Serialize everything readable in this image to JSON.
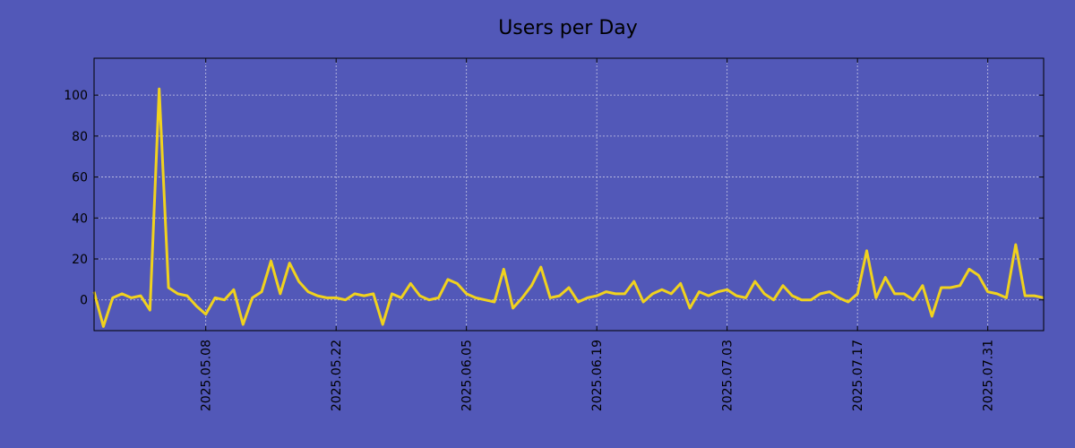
{
  "chart_data": {
    "type": "line",
    "title": "Users per Day",
    "xlabel": "",
    "ylabel": "",
    "ylim": [
      -15,
      118
    ],
    "yticks": [
      0,
      20,
      40,
      60,
      80,
      100
    ],
    "grid": true,
    "background": "#5258b8",
    "plot_background": "#5258b8",
    "line_color": "#f0d21e",
    "start_date": "2025.04.26",
    "xticks": [
      {
        "index": 12,
        "label": "2025.05.08"
      },
      {
        "index": 26,
        "label": "2025.05.22"
      },
      {
        "index": 40,
        "label": "2025.06.05"
      },
      {
        "index": 54,
        "label": "2025.06.19"
      },
      {
        "index": 68,
        "label": "2025.07.03"
      },
      {
        "index": 82,
        "label": "2025.07.17"
      },
      {
        "index": 96,
        "label": "2025.07.31"
      }
    ],
    "series": [
      {
        "name": "Users per Day",
        "values": [
          4,
          -13,
          1,
          3,
          1,
          2,
          -5,
          103,
          6,
          3,
          2,
          -3,
          -7,
          1,
          0,
          5,
          -12,
          1,
          4,
          19,
          3,
          18,
          9,
          4,
          2,
          1,
          1,
          0,
          3,
          2,
          3,
          -12,
          3,
          1,
          8,
          2,
          0,
          1,
          10,
          8,
          3,
          1,
          0,
          -1,
          15,
          -4,
          1,
          7,
          16,
          1,
          2,
          6,
          -1,
          1,
          2,
          4,
          3,
          3,
          9,
          -1,
          3,
          5,
          3,
          8,
          -4,
          4,
          2,
          4,
          5,
          2,
          1,
          9,
          3,
          0,
          7,
          2,
          0,
          0,
          3,
          4,
          1,
          -1,
          3,
          24,
          1,
          11,
          3,
          3,
          0,
          7,
          -8,
          6,
          6,
          7,
          15,
          12,
          4,
          3,
          1,
          27,
          2,
          2,
          1
        ]
      }
    ]
  }
}
